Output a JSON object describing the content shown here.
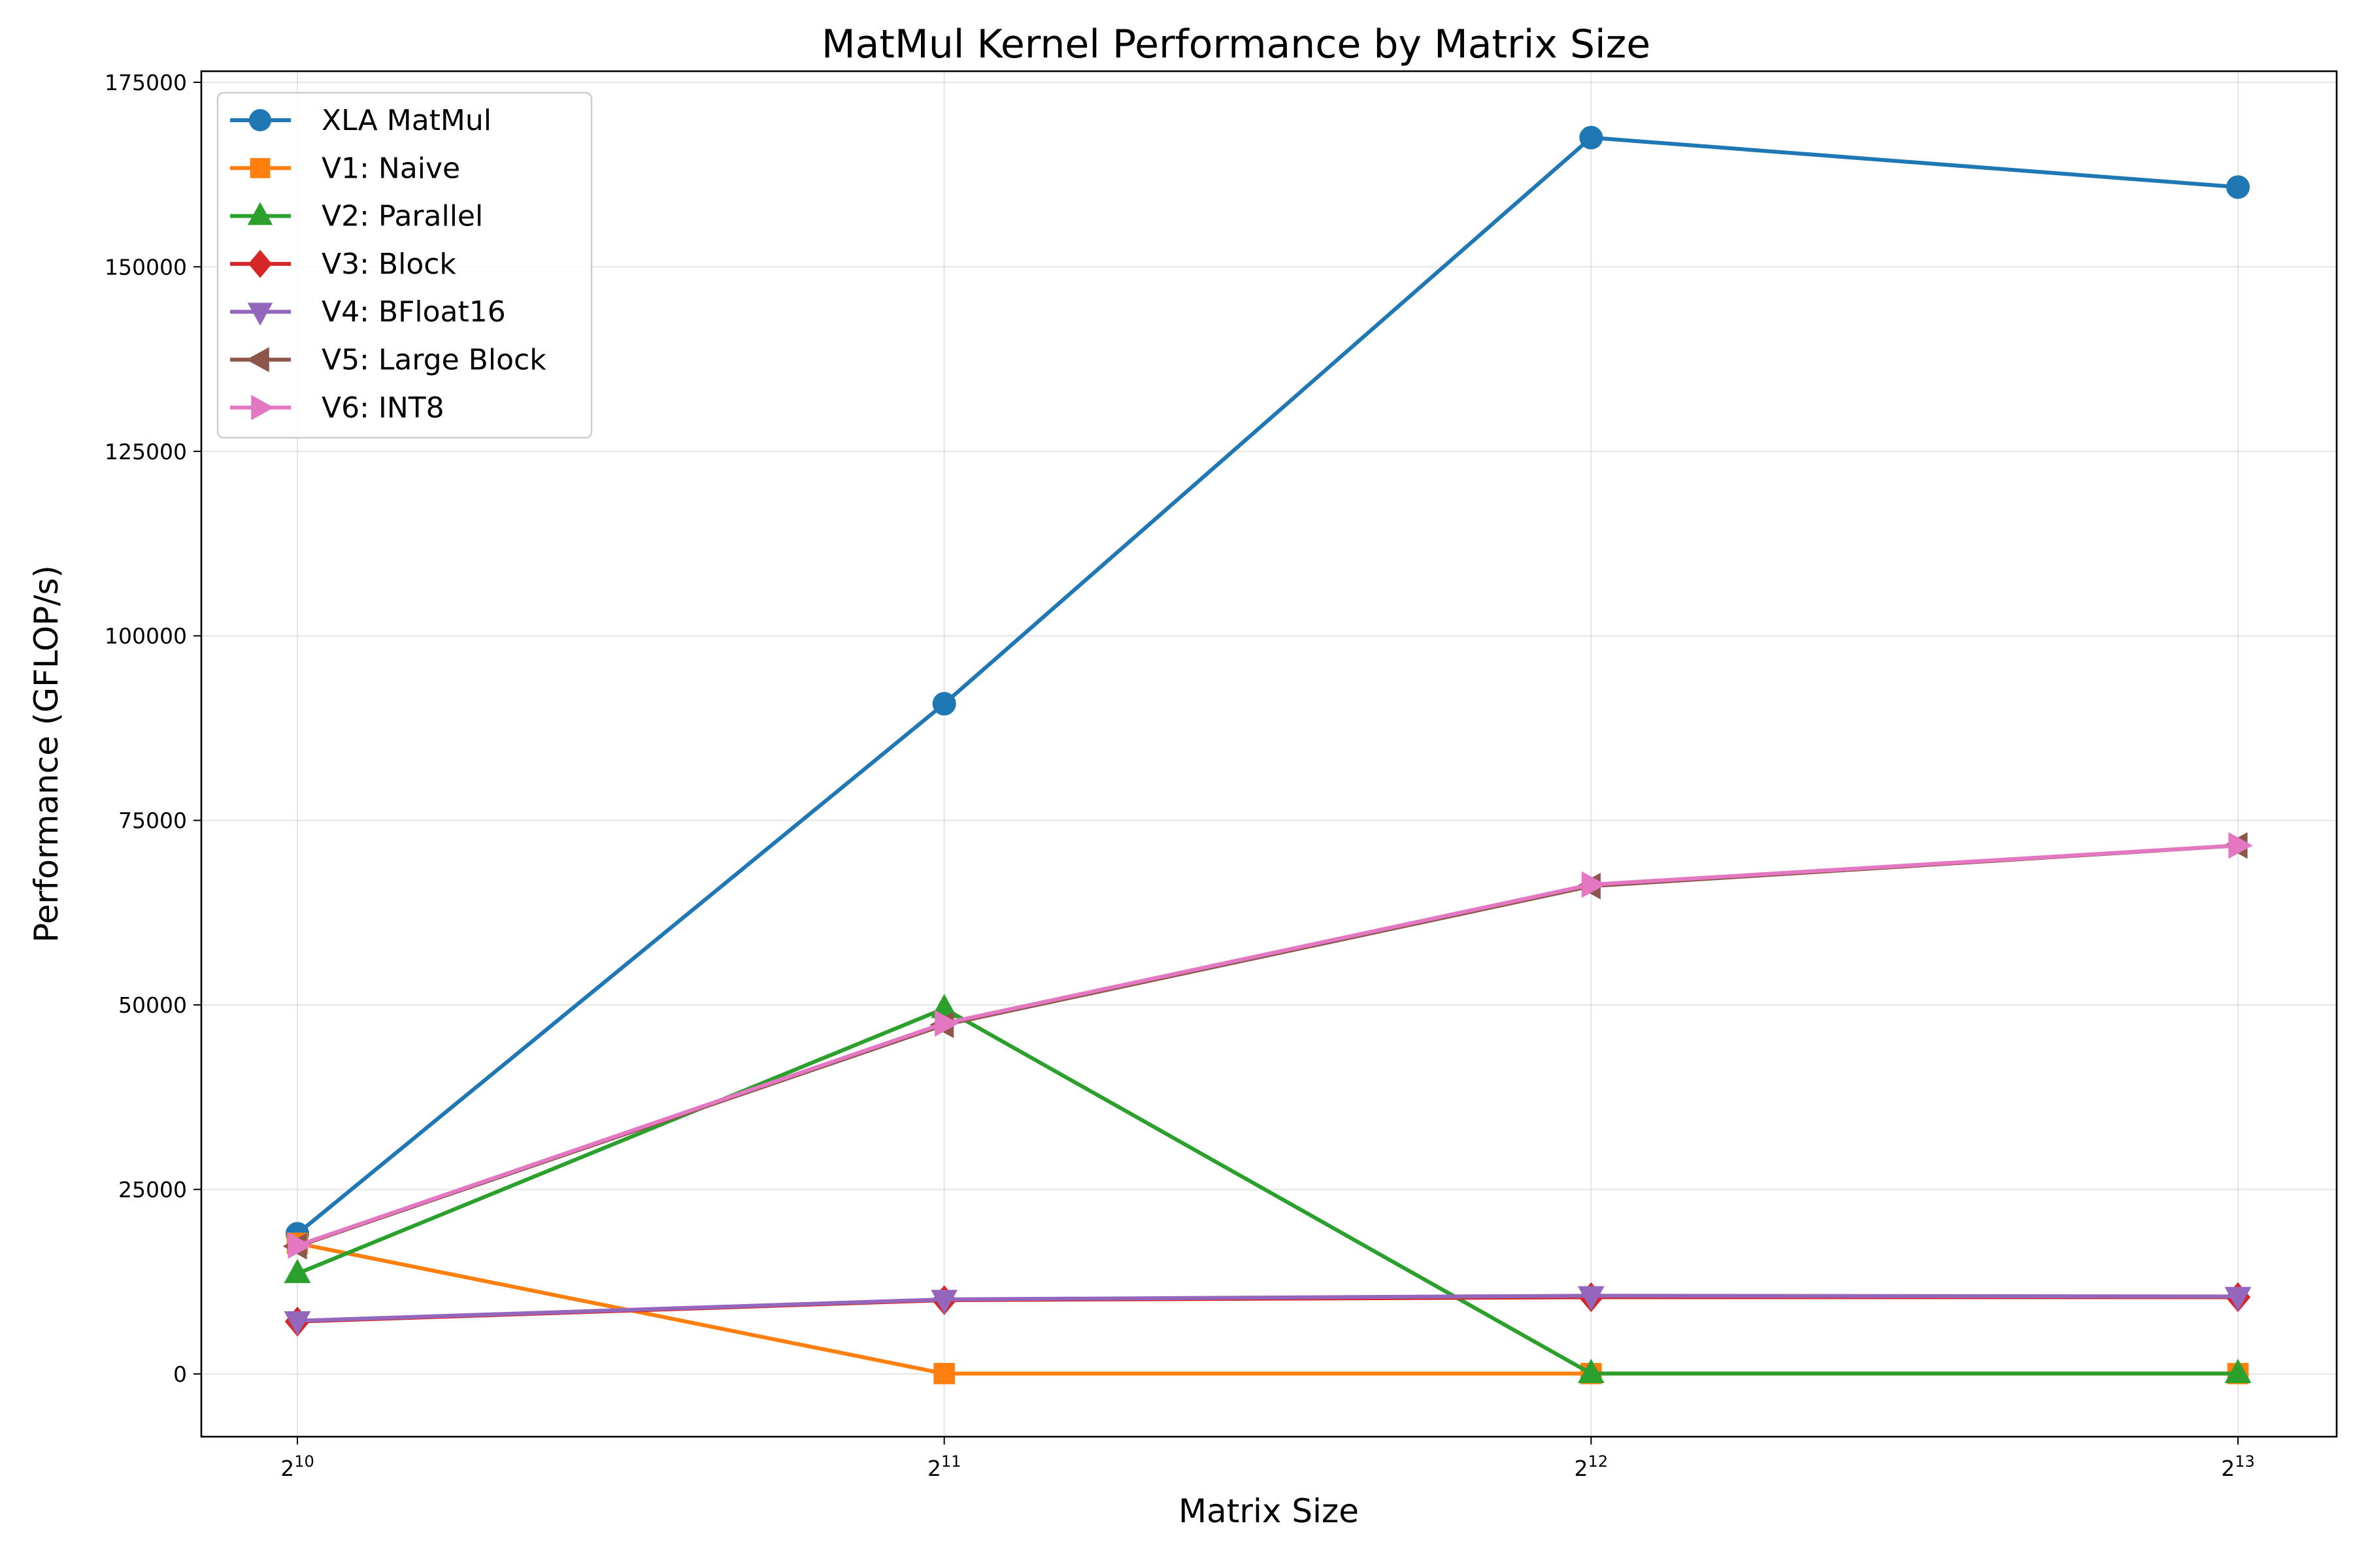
{
  "chart_data": {
    "type": "line",
    "title": "MatMul Kernel Performance by Matrix Size",
    "xlabel": "Matrix Size",
    "ylabel": "Performance (GFLOP/s)",
    "x_scale": "log2",
    "x": [
      1024,
      2048,
      4096,
      8192
    ],
    "x_tick_labels": [
      {
        "base": "2",
        "exp": "10"
      },
      {
        "base": "2",
        "exp": "11"
      },
      {
        "base": "2",
        "exp": "12"
      },
      {
        "base": "2",
        "exp": "13"
      }
    ],
    "ylim": [
      -8500,
      176500
    ],
    "y_ticks": [
      0,
      25000,
      50000,
      75000,
      100000,
      125000,
      150000,
      175000
    ],
    "y_tick_labels": [
      "0",
      "25000",
      "50000",
      "75000",
      "100000",
      "125000",
      "150000",
      "175000"
    ],
    "grid": true,
    "legend_position": "top-left",
    "series": [
      {
        "name": "XLA MatMul",
        "color": "#1f77b4",
        "marker": "circle",
        "values": [
          19000,
          90800,
          167500,
          160800
        ]
      },
      {
        "name": "V1: Naive",
        "color": "#ff7f0e",
        "marker": "square",
        "values": [
          17700,
          50,
          50,
          50
        ]
      },
      {
        "name": "V2: Parallel",
        "color": "#2ca02c",
        "marker": "triangle-up",
        "values": [
          13600,
          49500,
          50,
          50
        ]
      },
      {
        "name": "V3: Block",
        "color": "#d62728",
        "marker": "diamond",
        "values": [
          7100,
          10000,
          10400,
          10400
        ]
      },
      {
        "name": "V4: BFloat16",
        "color": "#9467bd",
        "marker": "triangle-down",
        "values": [
          7200,
          10100,
          10600,
          10500
        ]
      },
      {
        "name": "V5: Large Block",
        "color": "#8c564b",
        "marker": "triangle-left",
        "values": [
          17300,
          47300,
          66100,
          71600
        ]
      },
      {
        "name": "V6: INT8",
        "color": "#e377c2",
        "marker": "triangle-right",
        "values": [
          17400,
          47500,
          66300,
          71600
        ]
      }
    ]
  }
}
